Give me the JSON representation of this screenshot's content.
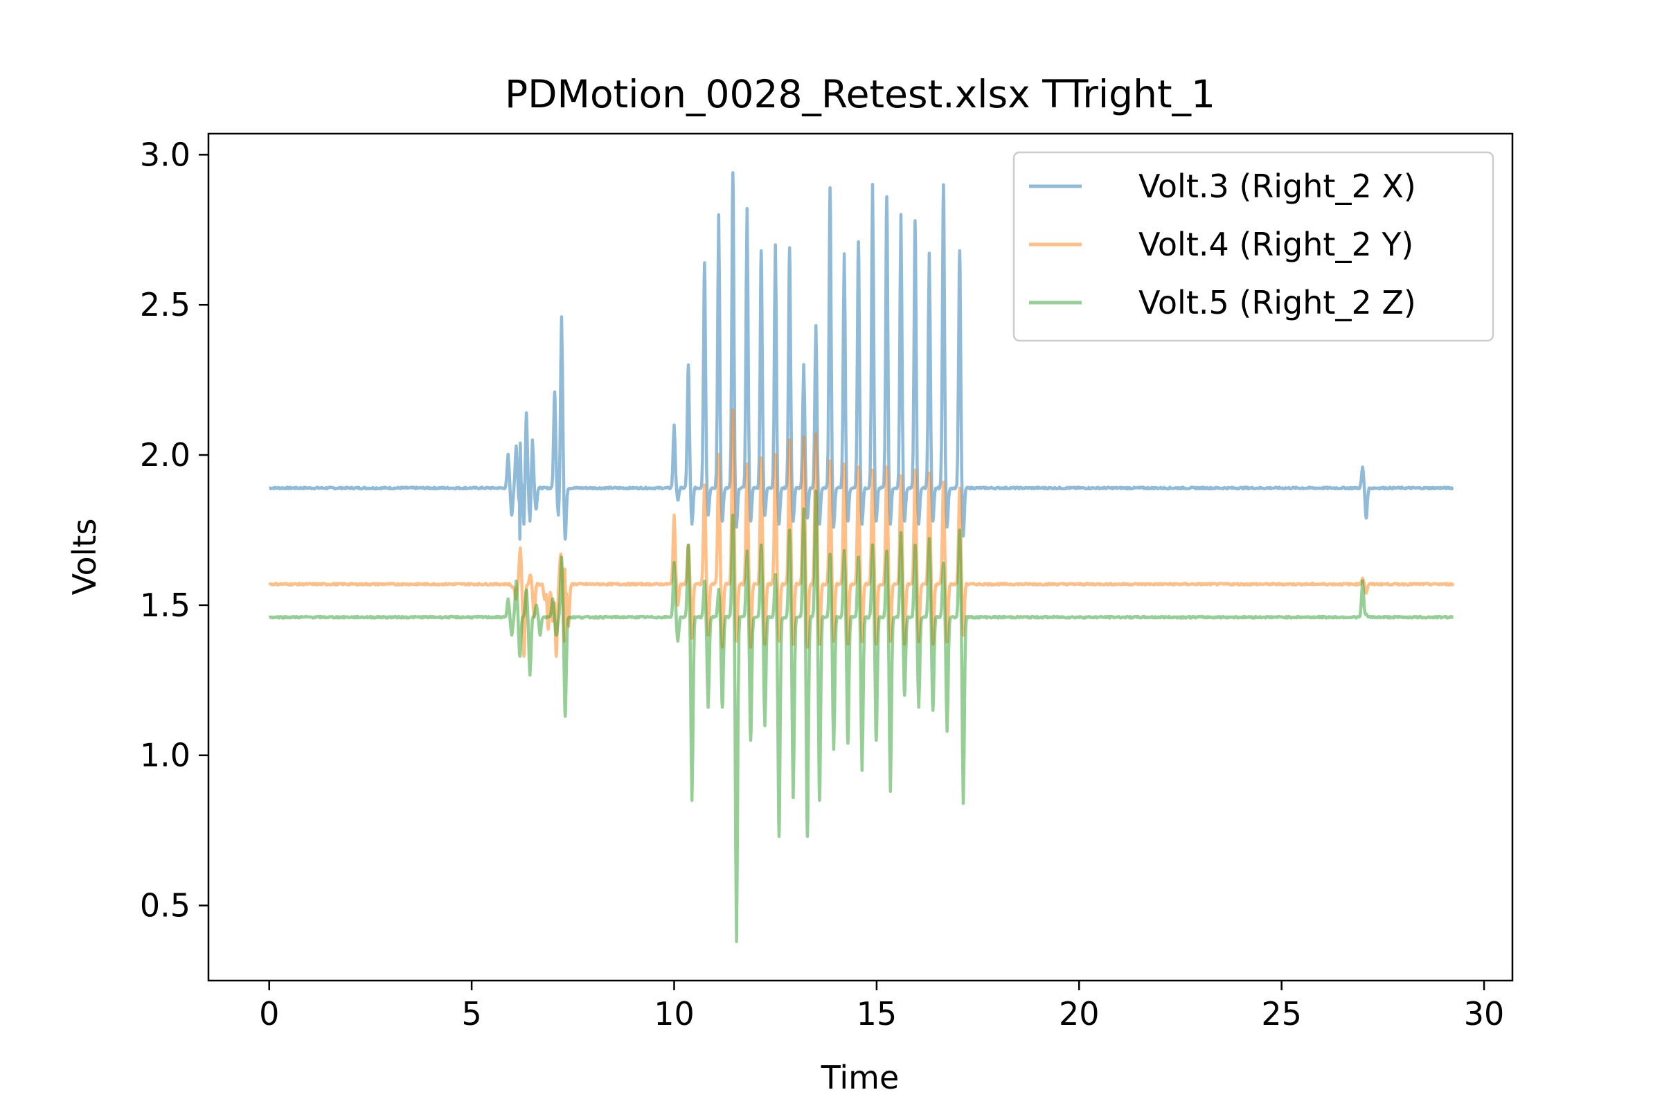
{
  "chart_data": {
    "type": "line",
    "title": "PDMotion_0028_Retest.xlsx TTright_1",
    "xlabel": "Time",
    "ylabel": "Volts",
    "xlim": [
      -1.5,
      30.7
    ],
    "ylim": [
      0.25,
      3.07
    ],
    "xticks": [
      0,
      5,
      10,
      15,
      20,
      25,
      30
    ],
    "yticks": [
      0.5,
      1.0,
      1.5,
      2.0,
      2.5,
      3.0
    ],
    "xtick_labels": [
      "0",
      "5",
      "10",
      "15",
      "20",
      "25",
      "30"
    ],
    "ytick_labels": [
      "0.5",
      "1.0",
      "1.5",
      "2.0",
      "2.5",
      "3.0"
    ],
    "grid": false,
    "legend_position": "top-right",
    "series": [
      {
        "name": "Volt.3 (Right_2 X)",
        "color": "#1f77b4",
        "baseline": 1.89,
        "peaks": [
          {
            "t": 5.9,
            "v": 2.0,
            "dip": 1.8
          },
          {
            "t": 6.1,
            "v": 2.03,
            "dip": 1.72
          },
          {
            "t": 6.2,
            "v": 2.04,
            "dip": 1.77
          },
          {
            "t": 6.35,
            "v": 2.14,
            "dip": 1.78
          },
          {
            "t": 6.5,
            "v": 2.05,
            "dip": 1.82
          },
          {
            "t": 7.05,
            "v": 2.21,
            "dip": 1.8
          },
          {
            "t": 7.22,
            "v": 2.46,
            "dip": 1.72
          },
          {
            "t": 10.0,
            "v": 2.1,
            "dip": 1.85
          },
          {
            "t": 10.35,
            "v": 2.3,
            "dip": 1.77
          },
          {
            "t": 10.75,
            "v": 2.64,
            "dip": 1.8
          },
          {
            "t": 11.1,
            "v": 2.8,
            "dip": 1.78
          },
          {
            "t": 11.45,
            "v": 2.94,
            "dip": 1.76
          },
          {
            "t": 11.8,
            "v": 2.82,
            "dip": 1.78
          },
          {
            "t": 12.15,
            "v": 2.68,
            "dip": 1.8
          },
          {
            "t": 12.5,
            "v": 2.7,
            "dip": 1.77
          },
          {
            "t": 12.85,
            "v": 2.69,
            "dip": 1.78
          },
          {
            "t": 13.2,
            "v": 2.3,
            "dip": 1.79
          },
          {
            "t": 13.5,
            "v": 2.43,
            "dip": 1.77
          },
          {
            "t": 13.85,
            "v": 2.89,
            "dip": 1.76
          },
          {
            "t": 14.2,
            "v": 2.67,
            "dip": 1.78
          },
          {
            "t": 14.55,
            "v": 2.71,
            "dip": 1.77
          },
          {
            "t": 14.9,
            "v": 2.9,
            "dip": 1.78
          },
          {
            "t": 15.25,
            "v": 2.86,
            "dip": 1.77
          },
          {
            "t": 15.6,
            "v": 2.8,
            "dip": 1.78
          },
          {
            "t": 15.95,
            "v": 2.78,
            "dip": 1.77
          },
          {
            "t": 16.3,
            "v": 2.67,
            "dip": 1.78
          },
          {
            "t": 16.65,
            "v": 2.9,
            "dip": 1.76
          },
          {
            "t": 17.05,
            "v": 2.68,
            "dip": 1.73
          },
          {
            "t": 27.0,
            "v": 1.96,
            "dip": 1.79
          }
        ]
      },
      {
        "name": "Volt.4 (Right_2 Y)",
        "color": "#ff7f0e",
        "baseline": 1.57,
        "peaks": [
          {
            "t": 6.0,
            "v": 1.56,
            "dip": 1.52
          },
          {
            "t": 6.2,
            "v": 1.69,
            "dip": 1.33
          },
          {
            "t": 6.45,
            "v": 1.6,
            "dip": 1.46
          },
          {
            "t": 6.8,
            "v": 1.52,
            "dip": 1.42
          },
          {
            "t": 7.0,
            "v": 1.45,
            "dip": 1.33
          },
          {
            "t": 7.2,
            "v": 1.67,
            "dip": 1.38
          },
          {
            "t": 7.3,
            "v": 1.62,
            "dip": 1.43
          },
          {
            "t": 10.0,
            "v": 1.8,
            "dip": 1.5
          },
          {
            "t": 10.35,
            "v": 1.7,
            "dip": 1.39
          },
          {
            "t": 10.75,
            "v": 1.9,
            "dip": 1.4
          },
          {
            "t": 11.1,
            "v": 2.0,
            "dip": 1.36
          },
          {
            "t": 11.45,
            "v": 2.15,
            "dip": 1.38
          },
          {
            "t": 11.8,
            "v": 1.97,
            "dip": 1.36
          },
          {
            "t": 12.15,
            "v": 1.99,
            "dip": 1.37
          },
          {
            "t": 12.5,
            "v": 2.0,
            "dip": 1.38
          },
          {
            "t": 12.85,
            "v": 2.05,
            "dip": 1.37
          },
          {
            "t": 13.2,
            "v": 2.06,
            "dip": 1.36
          },
          {
            "t": 13.5,
            "v": 2.07,
            "dip": 1.37
          },
          {
            "t": 13.85,
            "v": 1.98,
            "dip": 1.38
          },
          {
            "t": 14.2,
            "v": 1.97,
            "dip": 1.37
          },
          {
            "t": 14.55,
            "v": 1.96,
            "dip": 1.38
          },
          {
            "t": 14.9,
            "v": 1.95,
            "dip": 1.37
          },
          {
            "t": 15.25,
            "v": 1.96,
            "dip": 1.38
          },
          {
            "t": 15.6,
            "v": 1.93,
            "dip": 1.37
          },
          {
            "t": 15.95,
            "v": 1.95,
            "dip": 1.38
          },
          {
            "t": 16.3,
            "v": 1.94,
            "dip": 1.37
          },
          {
            "t": 16.65,
            "v": 1.91,
            "dip": 1.38
          },
          {
            "t": 17.05,
            "v": 1.89,
            "dip": 1.4
          },
          {
            "t": 27.0,
            "v": 1.59,
            "dip": 1.54
          }
        ]
      },
      {
        "name": "Volt.5 (Right_2 Z)",
        "color": "#2ca02c",
        "baseline": 1.46,
        "peaks": [
          {
            "t": 5.9,
            "v": 1.52,
            "dip": 1.4
          },
          {
            "t": 6.1,
            "v": 1.58,
            "dip": 1.33
          },
          {
            "t": 6.35,
            "v": 1.55,
            "dip": 1.27
          },
          {
            "t": 6.6,
            "v": 1.5,
            "dip": 1.4
          },
          {
            "t": 7.0,
            "v": 1.52,
            "dip": 1.4
          },
          {
            "t": 7.22,
            "v": 1.66,
            "dip": 1.13
          },
          {
            "t": 10.0,
            "v": 1.64,
            "dip": 1.38
          },
          {
            "t": 10.35,
            "v": 1.7,
            "dip": 0.85
          },
          {
            "t": 10.75,
            "v": 1.58,
            "dip": 1.16
          },
          {
            "t": 11.1,
            "v": 1.55,
            "dip": 1.16
          },
          {
            "t": 11.45,
            "v": 1.8,
            "dip": 0.38
          },
          {
            "t": 11.8,
            "v": 1.68,
            "dip": 1.05
          },
          {
            "t": 12.15,
            "v": 1.7,
            "dip": 1.1
          },
          {
            "t": 12.5,
            "v": 1.6,
            "dip": 0.73
          },
          {
            "t": 12.85,
            "v": 1.75,
            "dip": 0.86
          },
          {
            "t": 13.2,
            "v": 1.82,
            "dip": 0.73
          },
          {
            "t": 13.5,
            "v": 1.88,
            "dip": 0.85
          },
          {
            "t": 13.85,
            "v": 1.67,
            "dip": 1.02
          },
          {
            "t": 14.2,
            "v": 1.68,
            "dip": 1.04
          },
          {
            "t": 14.55,
            "v": 1.66,
            "dip": 0.95
          },
          {
            "t": 14.9,
            "v": 1.7,
            "dip": 1.05
          },
          {
            "t": 15.25,
            "v": 1.68,
            "dip": 0.88
          },
          {
            "t": 15.6,
            "v": 1.74,
            "dip": 1.2
          },
          {
            "t": 15.95,
            "v": 1.7,
            "dip": 1.16
          },
          {
            "t": 16.3,
            "v": 1.72,
            "dip": 1.15
          },
          {
            "t": 16.65,
            "v": 1.64,
            "dip": 1.08
          },
          {
            "t": 17.05,
            "v": 1.75,
            "dip": 0.84
          },
          {
            "t": 27.0,
            "v": 1.58,
            "dip": 1.47
          }
        ]
      }
    ],
    "x_end": 29.25
  }
}
